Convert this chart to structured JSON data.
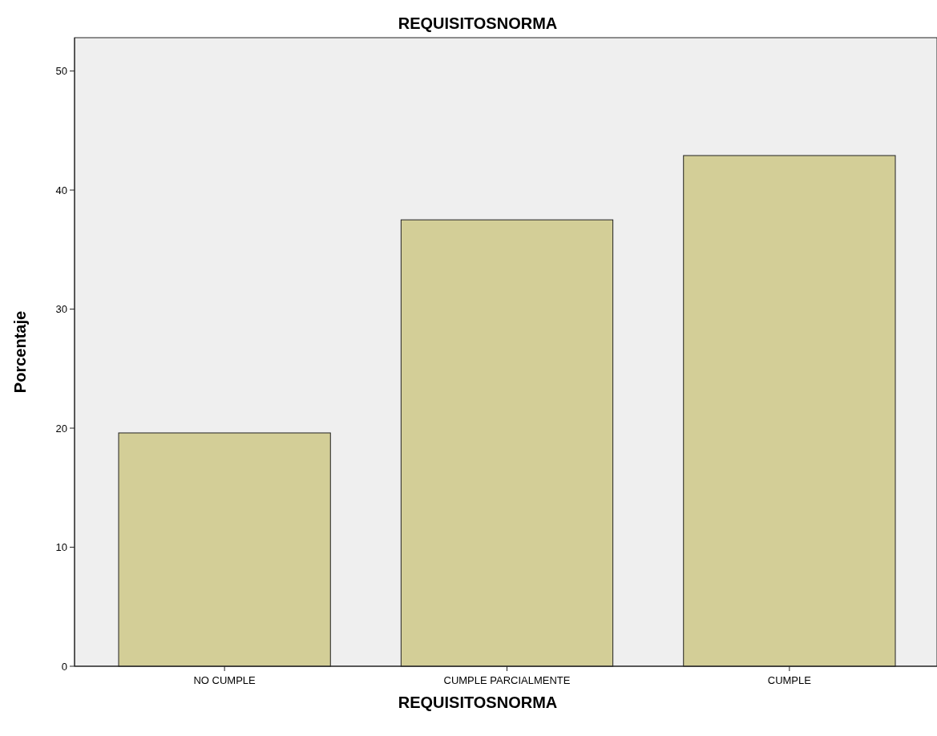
{
  "chart_data": {
    "type": "bar",
    "title": "REQUISITOSNORMA",
    "xlabel": "REQUISITOSNORMA",
    "ylabel": "Porcentaje",
    "categories": [
      "NO CUMPLE",
      "CUMPLE PARCIALMENTE",
      "CUMPLE"
    ],
    "values": [
      19.6,
      37.5,
      42.9
    ],
    "color": "#d3ce97",
    "ylim": [
      0,
      52.8
    ],
    "yticks": [
      0,
      10,
      20,
      30,
      40,
      50
    ],
    "grid": false
  }
}
